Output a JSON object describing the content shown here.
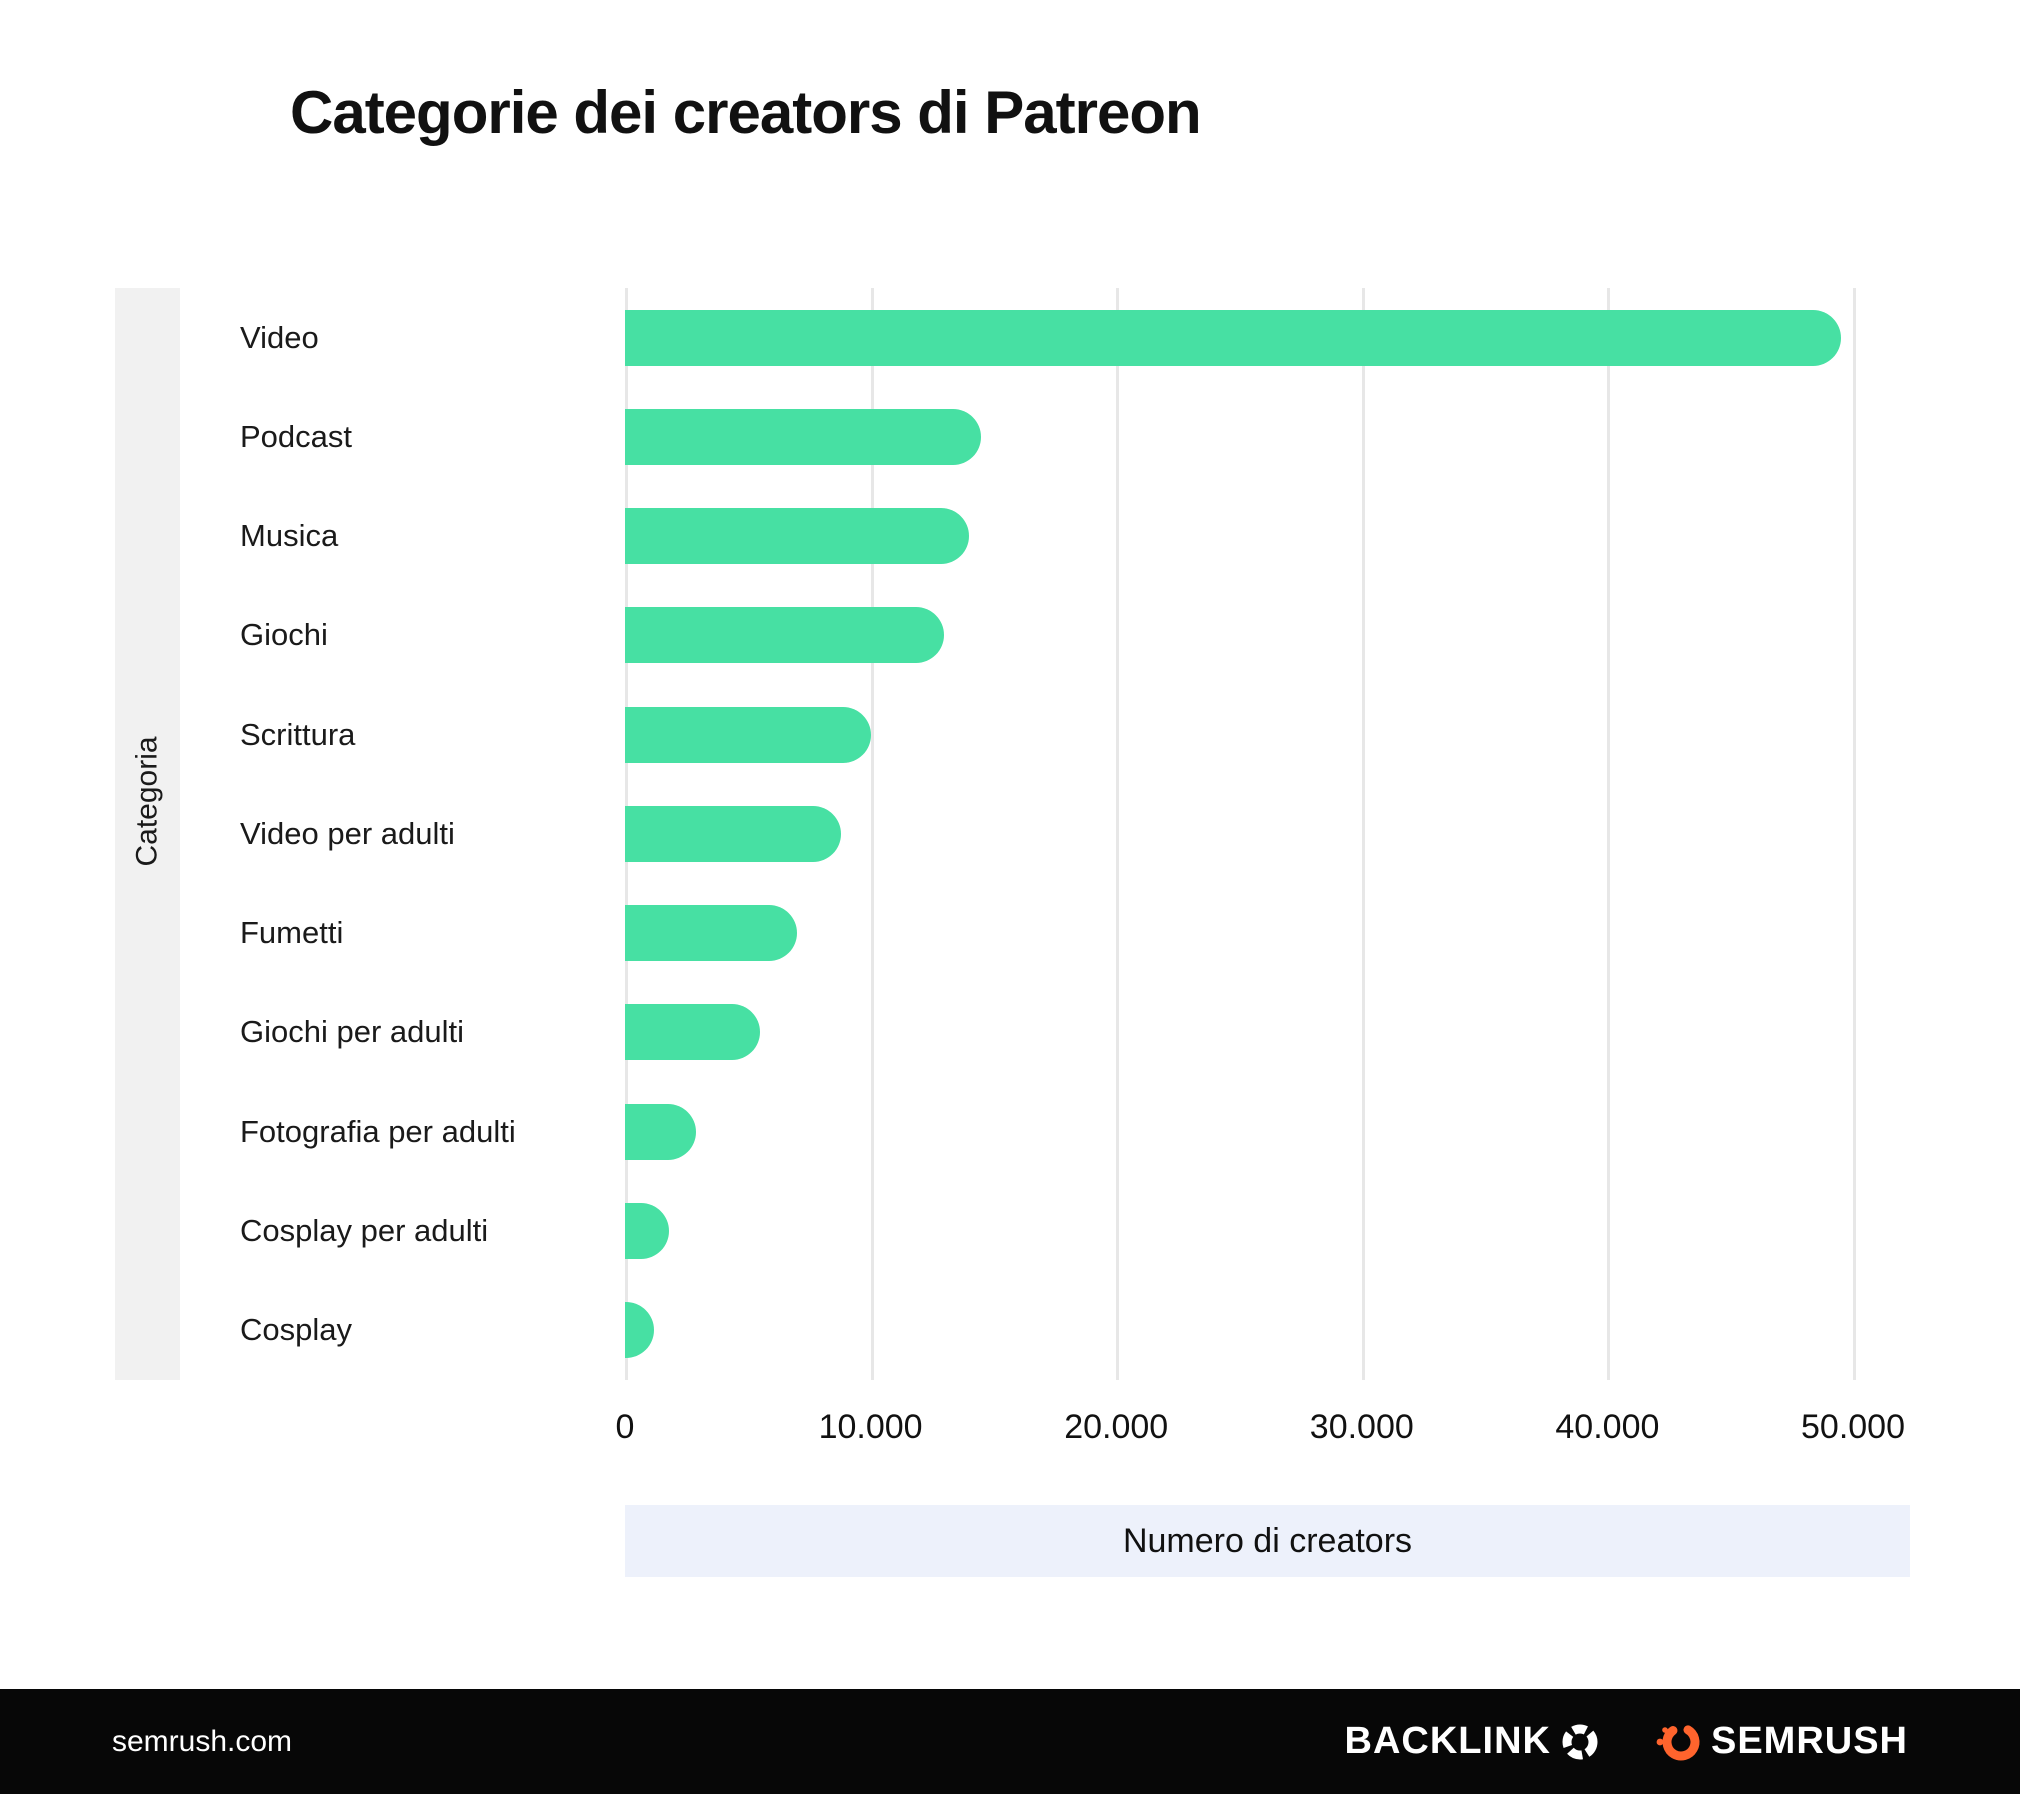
{
  "title": "Categorie dei creators di Patreon",
  "chart_data": {
    "type": "bar",
    "orientation": "horizontal",
    "title": "Categorie dei creators di Patreon",
    "categories": [
      "Video",
      "Podcast",
      "Musica",
      "Giochi",
      "Scrittura",
      "Video per adulti",
      "Fumetti",
      "Giochi per adulti",
      "Fotografia per adulti",
      "Cosplay per adulti",
      "Cosplay"
    ],
    "values": [
      49500,
      14500,
      14000,
      13000,
      10000,
      8800,
      7000,
      5500,
      2900,
      1800,
      1200
    ],
    "xlabel": "Numero di creators",
    "ylabel": "Categoria",
    "xlim": [
      0,
      50000
    ],
    "xticks": [
      0,
      10000,
      20000,
      30000,
      40000,
      50000
    ],
    "xtick_labels": [
      "0",
      "10.000",
      "20.000",
      "30.000",
      "40.000",
      "50.000"
    ],
    "bar_color": "#47e0a3",
    "grid": true,
    "legend": "none"
  },
  "footer": {
    "site": "semrush.com",
    "backlinko_label": "BACKLINK",
    "semrush_label": "SEMRUSH"
  }
}
